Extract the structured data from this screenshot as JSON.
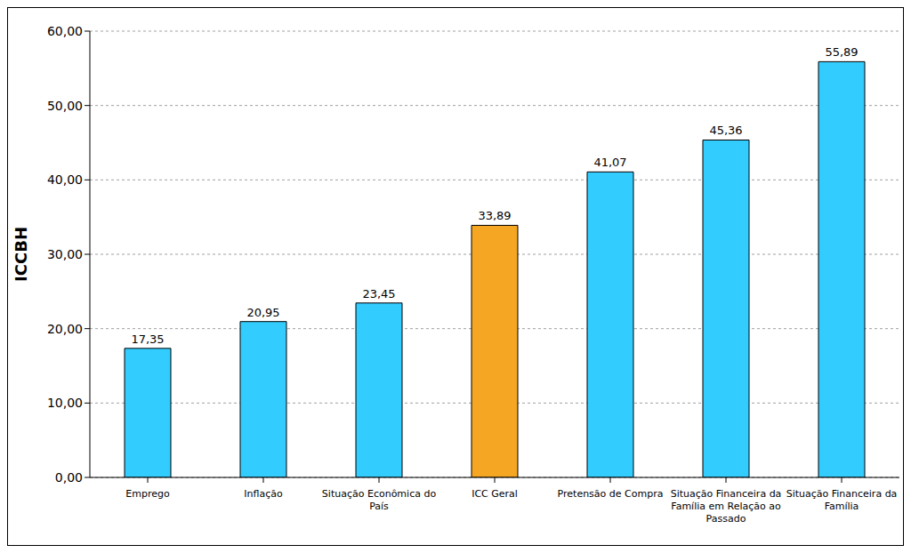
{
  "chart_data": {
    "type": "bar",
    "y_label": "ICCBH",
    "categories": [
      "Emprego",
      "Inflação",
      "Situação Econômica do País",
      "ICC Geral",
      "Pretensão de Compra",
      "Situação Financeira da Família em Relação ao Passado",
      "Situação Financeira da Família"
    ],
    "values": [
      17.35,
      20.95,
      23.45,
      33.89,
      41.07,
      45.36,
      55.89
    ],
    "value_labels": [
      "17,35",
      "20,95",
      "23,45",
      "33,89",
      "41,07",
      "45,36",
      "55,89"
    ],
    "colors": [
      "#33ccff",
      "#33ccff",
      "#33ccff",
      "#f5a623",
      "#33ccff",
      "#33ccff",
      "#33ccff"
    ],
    "ylim": [
      0,
      60
    ],
    "yticks": [
      {
        "value": 0,
        "label": "0,00"
      },
      {
        "value": 10,
        "label": "10,00"
      },
      {
        "value": 20,
        "label": "20,00"
      },
      {
        "value": 30,
        "label": "30,00"
      },
      {
        "value": 40,
        "label": "40,00"
      },
      {
        "value": 50,
        "label": "50,00"
      },
      {
        "value": 60,
        "label": "60,00"
      }
    ],
    "grid": true,
    "data_labels": true
  }
}
